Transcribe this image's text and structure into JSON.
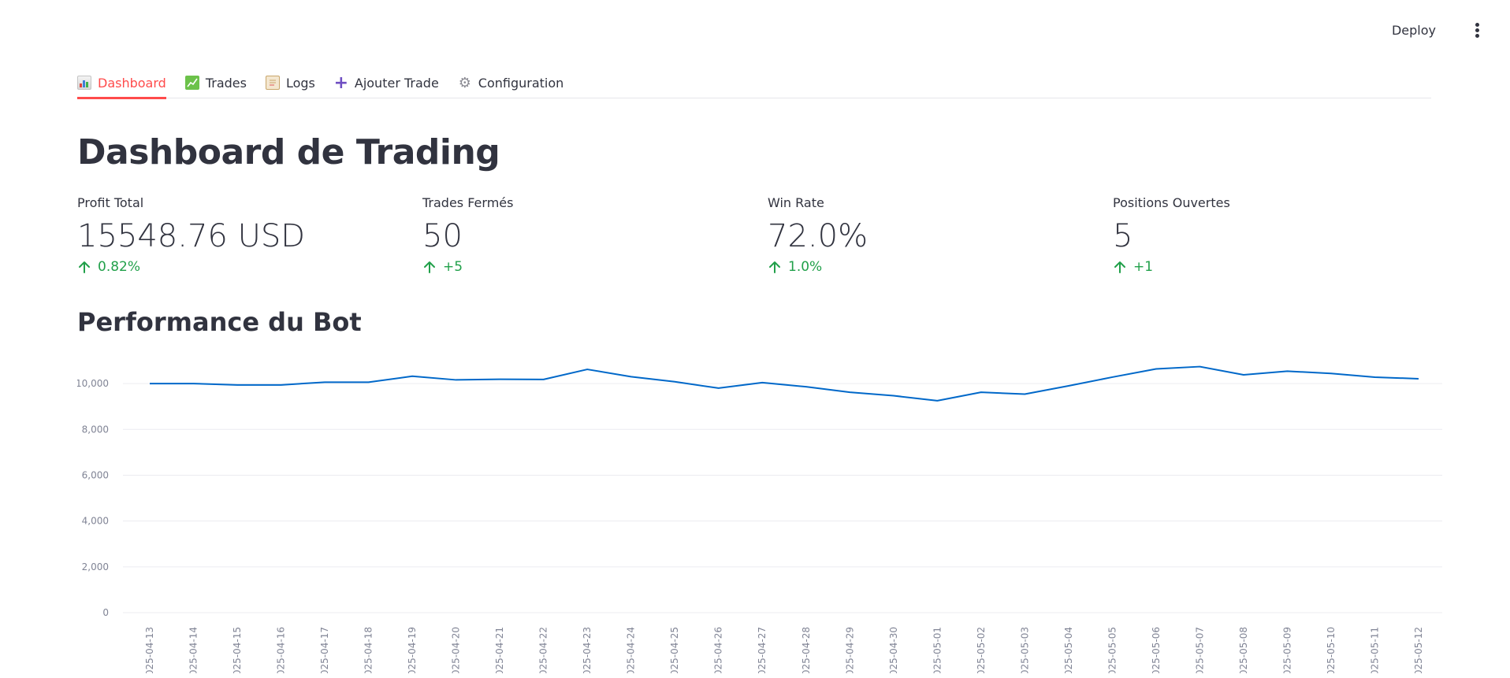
{
  "header": {
    "deploy_label": "Deploy",
    "menu_icon": "more-vertical-icon"
  },
  "tabs": [
    {
      "label": "Dashboard",
      "icon": "bar-chart-icon",
      "active": true
    },
    {
      "label": "Trades",
      "icon": "chart-increasing-icon",
      "active": false
    },
    {
      "label": "Logs",
      "icon": "page-icon",
      "active": false
    },
    {
      "label": "Ajouter Trade",
      "icon": "plus-icon",
      "active": false
    },
    {
      "label": "Configuration",
      "icon": "gear-icon",
      "active": false
    }
  ],
  "page": {
    "title": "Dashboard de Trading",
    "section_title": "Performance du Bot"
  },
  "metrics": [
    {
      "label": "Profit Total",
      "value": "15548.76 USD",
      "delta": "0.82%"
    },
    {
      "label": "Trades Fermés",
      "value": "50",
      "delta": "+5"
    },
    {
      "label": "Win Rate",
      "value": "72.0%",
      "delta": "1.0%"
    },
    {
      "label": "Positions Ouvertes",
      "value": "5",
      "delta": "+1"
    }
  ],
  "colors": {
    "accent": "#ff4b4b",
    "delta_positive": "#21a04a",
    "line": "#0068c9"
  },
  "chart_data": {
    "type": "line",
    "x": [
      "2025-04-13",
      "2025-04-14",
      "2025-04-15",
      "2025-04-16",
      "2025-04-17",
      "2025-04-18",
      "2025-04-19",
      "2025-04-20",
      "2025-04-21",
      "2025-04-22",
      "2025-04-23",
      "2025-04-24",
      "2025-04-25",
      "2025-04-26",
      "2025-04-27",
      "2025-04-28",
      "2025-04-29",
      "2025-04-30",
      "2025-05-01",
      "2025-05-02",
      "2025-05-03",
      "2025-05-04",
      "2025-05-05",
      "2025-05-06",
      "2025-05-07",
      "2025-05-08",
      "2025-05-09",
      "2025-05-10",
      "2025-05-11",
      "2025-05-12"
    ],
    "series": [
      {
        "values": [
          10000,
          10000,
          9940,
          9940,
          10060,
          10060,
          10320,
          10160,
          10190,
          10180,
          10620,
          10300,
          10080,
          9800,
          10040,
          9860,
          9620,
          9470,
          9250,
          9620,
          9540,
          9900,
          10280,
          10640,
          10740,
          10380,
          10540,
          10440,
          10280,
          10210
        ]
      }
    ],
    "yticks": [
      "0",
      "2,000",
      "4,000",
      "6,000",
      "8,000",
      "10,000"
    ],
    "ylim": [
      0,
      11000
    ],
    "xlabel": "",
    "ylabel": "",
    "grid": true
  }
}
